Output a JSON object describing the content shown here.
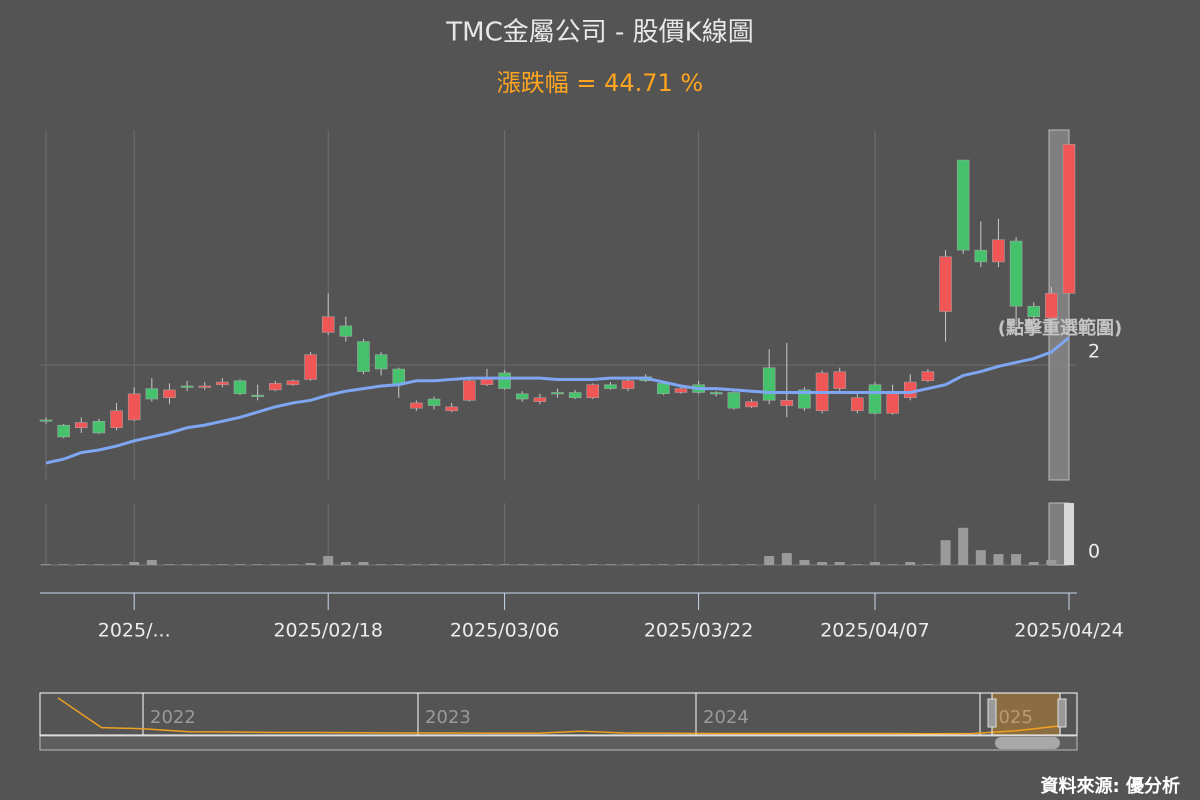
{
  "chart_data": {
    "type": "candlestick",
    "title": "TMC金屬公司 - 股價K線圖",
    "subtitle": "漲跌幅 = 44.71 %",
    "selection_note": "(點擊重選範圍)",
    "source": "資料來源: 優分析",
    "up_color": "#f05656",
    "down_color": "#46c16c",
    "categories": [
      null,
      null,
      null,
      null,
      null,
      "2025/...",
      null,
      null,
      null,
      null,
      null,
      null,
      null,
      null,
      null,
      null,
      "2025/02/18",
      null,
      null,
      null,
      null,
      null,
      null,
      null,
      null,
      null,
      "2025/03/06",
      null,
      null,
      null,
      null,
      null,
      null,
      null,
      null,
      null,
      null,
      "2025/03/22",
      null,
      null,
      null,
      null,
      null,
      null,
      null,
      null,
      null,
      "2025/04/07",
      null,
      null,
      null,
      null,
      null,
      null,
      null,
      null,
      null,
      null,
      "2025/04/24"
    ],
    "open": [
      1.58,
      1.54,
      1.52,
      1.57,
      1.52,
      1.58,
      1.82,
      1.75,
      1.84,
      1.83,
      1.85,
      1.88,
      1.77,
      1.81,
      1.85,
      1.89,
      2.25,
      2.3,
      2.18,
      2.08,
      1.97,
      1.67,
      1.74,
      1.65,
      1.73,
      1.85,
      1.94,
      1.78,
      1.72,
      1.79,
      1.79,
      1.75,
      1.85,
      1.82,
      1.91,
      1.86,
      1.79,
      1.85,
      1.79,
      1.79,
      1.68,
      1.98,
      1.69,
      1.81,
      1.65,
      1.82,
      1.65,
      1.85,
      1.63,
      1.75,
      1.88,
      2.41,
      3.57,
      2.88,
      2.79,
      2.95,
      2.45,
      2.36,
      2.55
    ],
    "high": [
      1.6,
      1.55,
      1.6,
      1.59,
      1.71,
      1.83,
      1.9,
      1.86,
      1.88,
      1.87,
      1.9,
      1.89,
      1.85,
      1.88,
      1.89,
      2.1,
      2.55,
      2.37,
      2.2,
      2.1,
      1.98,
      1.73,
      1.76,
      1.71,
      1.9,
      1.97,
      1.96,
      1.8,
      1.78,
      1.82,
      1.81,
      1.86,
      1.87,
      1.9,
      1.93,
      1.88,
      1.83,
      1.88,
      1.8,
      1.8,
      1.74,
      2.12,
      2.17,
      1.83,
      1.96,
      1.98,
      1.78,
      1.87,
      1.85,
      1.93,
      1.97,
      2.88,
      3.57,
      3.1,
      3.12,
      2.98,
      2.48,
      2.6,
      3.69
    ],
    "low": [
      1.55,
      1.44,
      1.48,
      1.47,
      1.5,
      1.57,
      1.72,
      1.7,
      1.8,
      1.81,
      1.83,
      1.77,
      1.73,
      1.8,
      1.84,
      1.88,
      2.23,
      2.18,
      1.93,
      1.92,
      1.75,
      1.65,
      1.66,
      1.64,
      1.72,
      1.84,
      1.81,
      1.72,
      1.7,
      1.75,
      1.74,
      1.74,
      1.81,
      1.8,
      1.87,
      1.77,
      1.78,
      1.78,
      1.76,
      1.66,
      1.67,
      1.7,
      1.6,
      1.65,
      1.63,
      1.8,
      1.63,
      1.62,
      1.62,
      1.73,
      1.87,
      2.18,
      2.85,
      2.75,
      2.75,
      2.3,
      2.33,
      2.32,
      2.55
    ],
    "close": [
      1.57,
      1.45,
      1.56,
      1.48,
      1.65,
      1.78,
      1.74,
      1.81,
      1.83,
      1.84,
      1.87,
      1.78,
      1.76,
      1.86,
      1.88,
      2.08,
      2.37,
      2.22,
      1.95,
      1.97,
      1.85,
      1.71,
      1.69,
      1.68,
      1.88,
      1.9,
      1.82,
      1.74,
      1.75,
      1.78,
      1.75,
      1.85,
      1.82,
      1.88,
      1.88,
      1.78,
      1.82,
      1.79,
      1.78,
      1.67,
      1.72,
      1.73,
      1.73,
      1.67,
      1.94,
      1.95,
      1.75,
      1.63,
      1.78,
      1.87,
      1.95,
      2.83,
      2.88,
      2.79,
      2.96,
      2.45,
      2.37,
      2.55,
      3.69
    ],
    "ma": {
      "color": "#7ea6f2",
      "values": [
        1.25,
        1.28,
        1.33,
        1.35,
        1.38,
        1.42,
        1.45,
        1.48,
        1.52,
        1.54,
        1.57,
        1.6,
        1.64,
        1.68,
        1.71,
        1.73,
        1.77,
        1.8,
        1.82,
        1.84,
        1.85,
        1.88,
        1.88,
        1.89,
        1.9,
        1.9,
        1.9,
        1.9,
        1.9,
        1.89,
        1.89,
        1.89,
        1.9,
        1.9,
        1.9,
        1.87,
        1.84,
        1.82,
        1.82,
        1.81,
        1.8,
        1.79,
        1.79,
        1.79,
        1.79,
        1.79,
        1.79,
        1.79,
        1.79,
        1.79,
        1.82,
        1.85,
        1.92,
        1.95,
        1.99,
        2.02,
        2.05,
        2.1,
        2.21
      ]
    },
    "ylim": [
      1.12,
      3.8
    ],
    "yticks": [
      2
    ],
    "grid": true,
    "volume": {
      "color": "#9a9a9a",
      "ylim": [
        0,
        25
      ],
      "yticks": [
        0
      ],
      "values": [
        0.3,
        0.3,
        0.3,
        0.3,
        0.3,
        1.2,
        2,
        0.3,
        0.3,
        0.3,
        0.3,
        0.3,
        0.3,
        0.3,
        0.3,
        0.8,
        3.6,
        1.2,
        1.2,
        0.3,
        0.3,
        0.3,
        0.3,
        0.3,
        0.3,
        0.3,
        0.3,
        0.3,
        0.3,
        0.3,
        0.3,
        0.3,
        0.3,
        0.3,
        0.3,
        0.3,
        0.3,
        0.3,
        0.3,
        0.3,
        0.3,
        3.6,
        4.8,
        2,
        1.2,
        1.2,
        0.3,
        1.2,
        0.3,
        1.2,
        0.3,
        10,
        15,
        6,
        4.4,
        4.4,
        1.2,
        2,
        25
      ]
    },
    "navigator": {
      "color": "#f0a020",
      "years": [
        "2022",
        "2023",
        "2024",
        "2025"
      ],
      "ylim": [
        0,
        17
      ],
      "values": [
        15,
        3,
        2.5,
        1.3,
        1.2,
        1,
        1,
        0.9,
        0.8,
        0.8,
        0.7,
        0.7,
        1.5,
        0.8,
        0.7,
        0.6,
        0.6,
        0.6,
        0.6,
        0.6,
        0.5,
        0.6,
        1.7,
        3.7
      ]
    }
  }
}
